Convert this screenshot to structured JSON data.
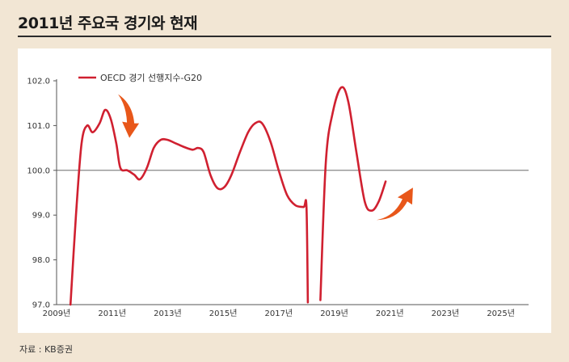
{
  "title": "2011년 주요국 경기와 현재",
  "source": "자료 : KB증권",
  "chart_data": {
    "type": "line",
    "title": "2011년 주요국 경기와 현재",
    "xlabel": "",
    "ylabel": "",
    "ylim": [
      97.0,
      102.0
    ],
    "xlim": [
      2009.0,
      2026.0
    ],
    "reference_line": 100.0,
    "y_ticks": [
      "102.0",
      "101.0",
      "100.0",
      "99.0",
      "98.0",
      "97.0"
    ],
    "y_tick_values": [
      102.0,
      101.0,
      100.0,
      99.0,
      98.0,
      97.0
    ],
    "x_ticks": [
      "2009년",
      "2011년",
      "2013년",
      "2015년",
      "2017년",
      "2019년",
      "2021년",
      "2023년",
      "2025년"
    ],
    "x_tick_values": [
      2009,
      2011,
      2013,
      2015,
      2017,
      2019,
      2021,
      2023,
      2025
    ],
    "line_color": "#d02030",
    "arrow_color": "#e8571a",
    "series": [
      {
        "name": "OECD 경기 선행지수-G20",
        "segments": [
          [
            [
              2009.5,
              97.0
            ],
            [
              2009.7,
              99.0
            ],
            [
              2009.9,
              100.6
            ],
            [
              2010.1,
              101.0
            ],
            [
              2010.3,
              100.85
            ],
            [
              2010.55,
              101.05
            ],
            [
              2010.75,
              101.35
            ],
            [
              2010.95,
              101.15
            ],
            [
              2011.15,
              100.6
            ],
            [
              2011.3,
              100.05
            ],
            [
              2011.55,
              100.0
            ],
            [
              2011.8,
              99.9
            ],
            [
              2012.0,
              99.8
            ],
            [
              2012.25,
              100.05
            ],
            [
              2012.5,
              100.5
            ],
            [
              2012.75,
              100.68
            ],
            [
              2013.0,
              100.68
            ],
            [
              2013.3,
              100.6
            ],
            [
              2013.6,
              100.52
            ],
            [
              2013.9,
              100.46
            ],
            [
              2014.1,
              100.5
            ],
            [
              2014.3,
              100.4
            ],
            [
              2014.55,
              99.88
            ],
            [
              2014.8,
              99.6
            ],
            [
              2015.05,
              99.63
            ],
            [
              2015.3,
              99.9
            ],
            [
              2015.6,
              100.4
            ],
            [
              2015.9,
              100.85
            ],
            [
              2016.15,
              101.05
            ],
            [
              2016.4,
              101.05
            ],
            [
              2016.7,
              100.65
            ],
            [
              2017.0,
              100.0
            ],
            [
              2017.3,
              99.45
            ],
            [
              2017.6,
              99.22
            ],
            [
              2017.9,
              99.18
            ],
            [
              2018.0,
              99.18
            ],
            [
              2018.05,
              97.05
            ]
          ],
          [
            [
              2018.5,
              97.1
            ],
            [
              2018.7,
              100.2
            ],
            [
              2018.95,
              101.3
            ],
            [
              2019.25,
              101.85
            ],
            [
              2019.5,
              101.55
            ],
            [
              2019.8,
              100.4
            ],
            [
              2020.1,
              99.3
            ],
            [
              2020.35,
              99.1
            ],
            [
              2020.6,
              99.3
            ],
            [
              2020.85,
              99.75
            ]
          ]
        ]
      }
    ]
  }
}
